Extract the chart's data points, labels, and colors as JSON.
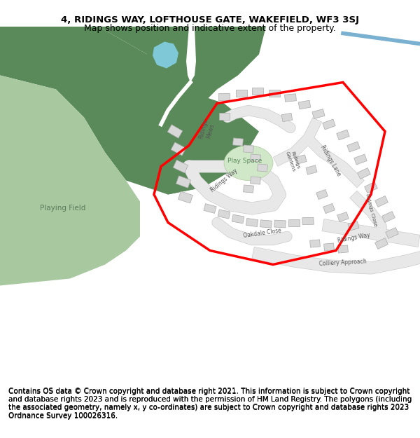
{
  "title_line1": "4, RIDINGS WAY, LOFTHOUSE GATE, WAKEFIELD, WF3 3SJ",
  "title_line2": "Map shows position and indicative extent of the property.",
  "footer_text": "Contains OS data © Crown copyright and database right 2021. This information is subject to Crown copyright and database rights 2023 and is reproduced with the permission of HM Land Registry. The polygons (including the associated geometry, namely x, y co-ordinates) are subject to Crown copyright and database rights 2023 Ordnance Survey 100026316.",
  "map_bg_color": "#f8f8f8",
  "white_bg": "#ffffff",
  "green_dark": "#5a8a5a",
  "green_light": "#a8c8a0",
  "blue_lake": "#7ec8d8",
  "road_color": "#e8e8e8",
  "road_stroke": "#cccccc",
  "building_color": "#d8d8d8",
  "building_stroke": "#aaaaaa",
  "text_color": "#444444",
  "red_boundary": "#ff0000",
  "road_text_color": "#555555",
  "title_fontsize": 9.5,
  "subtitle_fontsize": 9.0,
  "footer_fontsize": 7.5,
  "blue_road_color": "#7ab0d0"
}
